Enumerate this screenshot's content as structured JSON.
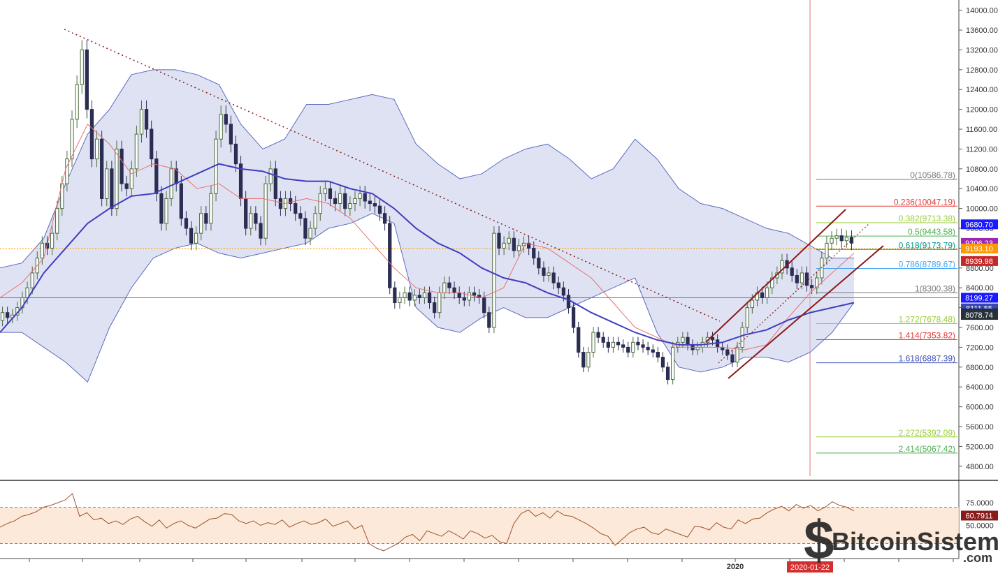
{
  "chart_data": {
    "type": "candlestick",
    "price_axis": {
      "ticks": [
        "14000.00",
        "13600.00",
        "13200.00",
        "12800.00",
        "12400.00",
        "12000.00",
        "11600.00",
        "11200.00",
        "10800.00",
        "10400.00",
        "10000.00",
        "9600.00",
        "9200.00",
        "8800.00",
        "8400.00",
        "8000.00",
        "7600.00",
        "7200.00",
        "6800.00",
        "6400.00",
        "6000.00",
        "5600.00",
        "5200.00",
        "4800.00"
      ],
      "range": [
        4600,
        14150
      ]
    },
    "price_labels": [
      {
        "text": "9680.70",
        "value": 9680.7,
        "color": "#1a1aff"
      },
      {
        "text": "9306.23",
        "value": 9306.23,
        "color": "#9c27b0"
      },
      {
        "text": "9193.10",
        "value": 9193.1,
        "color": "#ff9800"
      },
      {
        "text": "8939.98",
        "value": 8939.98,
        "color": "#c62828"
      },
      {
        "text": "8199.27",
        "value": 8199.27,
        "color": "#1a1aff"
      },
      {
        "text": "8111.55",
        "value": 8111.55,
        "color": "#3949ab"
      },
      {
        "text": "8111.55",
        "value": 8111.55,
        "color": "#1a237e"
      },
      {
        "text": "8078.74",
        "value": 8078.74,
        "color": "#263238"
      }
    ],
    "fibonacci": [
      {
        "label": "0(10586.78)",
        "value": 10586.78,
        "color": "#787878"
      },
      {
        "label": "0.236(10047.19)",
        "value": 10047.19,
        "color": "#e53935"
      },
      {
        "label": "0.382(9713.38)",
        "value": 9713.38,
        "color": "#9acd32"
      },
      {
        "label": "0.5(9443.58)",
        "value": 9443.58,
        "color": "#4caf50"
      },
      {
        "label": "0.618(9173.79)",
        "value": 9173.79,
        "color": "#009688"
      },
      {
        "label": "0.786(8789.67)",
        "value": 8789.67,
        "color": "#42a5f5"
      },
      {
        "label": "1(8300.38)",
        "value": 8300.38,
        "color": "#787878"
      },
      {
        "label": "1.272(7678.48)",
        "value": 7678.48,
        "color": "#9acd32"
      },
      {
        "label": "1.414(7353.82)",
        "value": 7353.82,
        "color": "#e53935"
      },
      {
        "label": "1.618(6887.39)",
        "value": 6887.39,
        "color": "#3f51b5"
      },
      {
        "label": "2.272(5392.09)",
        "value": 5392.09,
        "color": "#9acd32"
      },
      {
        "label": "2.414(5067.42)",
        "value": 5067.42,
        "color": "#4caf50"
      }
    ],
    "horizontal_levels": [
      {
        "value": 8199.27,
        "color": "#607d8b",
        "style": "solid"
      },
      {
        "value": 9193.1,
        "color": "#ff9800",
        "style": "dotted"
      }
    ],
    "closes": [
      7900,
      7800,
      7850,
      8000,
      8200,
      8400,
      8700,
      9000,
      9300,
      9200,
      9500,
      10000,
      10500,
      11000,
      11800,
      12500,
      13200,
      12000,
      11000,
      11400,
      10200,
      10800,
      10000,
      11200,
      10500,
      10400,
      10800,
      11500,
      12000,
      11600,
      11000,
      10300,
      9700,
      10200,
      10800,
      10500,
      9800,
      9600,
      9300,
      9500,
      9900,
      9700,
      10300,
      11400,
      11900,
      11700,
      11300,
      10900,
      10200,
      9600,
      9900,
      9700,
      9400,
      10500,
      10800,
      10200,
      10000,
      10200,
      10100,
      9900,
      9800,
      9400,
      9600,
      9900,
      10300,
      10400,
      10200,
      10100,
      10300,
      10000,
      10100,
      10200,
      10300,
      10150,
      10100,
      10050,
      9900,
      9700,
      8400,
      8100,
      8200,
      8300,
      8150,
      8250,
      8200,
      8300,
      8100,
      7900,
      8300,
      8500,
      8400,
      8300,
      8200,
      8150,
      8300,
      8250,
      8200,
      7900,
      7600,
      9500,
      9200,
      9300,
      9400,
      9150,
      9250,
      9300,
      9200,
      9000,
      8800,
      8650,
      8700,
      8500,
      8400,
      8250,
      8000,
      7600,
      7100,
      6800,
      7100,
      7500,
      7400,
      7300,
      7200,
      7300,
      7250,
      7200,
      7100,
      7300,
      7250,
      7200,
      7150,
      7100,
      7000,
      6800,
      6550,
      7200,
      7300,
      7400,
      7250,
      7150,
      7200,
      7300,
      7400,
      7350,
      7200,
      7150,
      7050,
      6900,
      7200,
      7600,
      8000,
      8150,
      8300,
      8200,
      8400,
      8600,
      8700,
      8950,
      8800,
      8650,
      8500,
      8700,
      8450,
      8400,
      8600,
      9000,
      9300,
      9400,
      9450,
      9350,
      9420,
      9300
    ],
    "bb_upper": [
      8800,
      8900,
      9400,
      10500,
      11500,
      12000,
      12700,
      12800,
      12800,
      12700,
      12500,
      11700,
      11200,
      11400,
      12100,
      12100,
      12200,
      12300,
      12200,
      11300,
      10900,
      10600,
      10700,
      11000,
      11200,
      11300,
      11000,
      10600,
      10800,
      11400,
      11000,
      10400,
      10100,
      10000,
      9800,
      9600,
      9500,
      9250,
      9000,
      9000
    ],
    "bb_lower": [
      7500,
      7500,
      7200,
      6900,
      6500,
      7600,
      8400,
      9000,
      9200,
      9300,
      9100,
      9000,
      9100,
      9200,
      9300,
      9600,
      9700,
      9900,
      9700,
      8000,
      7600,
      7500,
      7800,
      8000,
      7800,
      7800,
      8000,
      8200,
      8400,
      8600,
      7500,
      6800,
      6700,
      6800,
      7000,
      7000,
      6900,
      7100,
      7500,
      8100
    ],
    "ma_slow": [
      7500,
      8000,
      8700,
      9200,
      9700,
      10000,
      10250,
      10300,
      10500,
      10700,
      10900,
      10800,
      10750,
      10600,
      10550,
      10550,
      10400,
      10300,
      10000,
      9600,
      9300,
      9100,
      8800,
      8600,
      8500,
      8300,
      8150,
      7900,
      7700,
      7500,
      7350,
      7250,
      7250,
      7300,
      7450,
      7550,
      7750,
      7900,
      8000,
      8100
    ],
    "ma_fast": [
      8200,
      8500,
      9000,
      10800,
      11700,
      11300,
      10700,
      10900,
      10800,
      10400,
      10500,
      10200,
      10200,
      10100,
      10200,
      10100,
      9800,
      9300,
      8800,
      8400,
      8300,
      8300,
      8200,
      8400,
      9300,
      9200,
      8900,
      8600,
      8100,
      7600,
      7400,
      7200,
      7200,
      7200,
      7150,
      7250,
      7800,
      8300,
      8700,
      9100
    ],
    "rsi": {
      "label": "60.7911",
      "value": 60.7911,
      "ticks": [
        "75.0000",
        "50.0000"
      ],
      "upper_band": 70,
      "lower_band": 30,
      "series": [
        48,
        52,
        55,
        60,
        62,
        65,
        70,
        72,
        75,
        78,
        85,
        60,
        64,
        56,
        58,
        52,
        55,
        51,
        57,
        60,
        54,
        49,
        56,
        47,
        52,
        55,
        50,
        47,
        52,
        57,
        58,
        63,
        62,
        55,
        52,
        55,
        50,
        53,
        51,
        56,
        48,
        52,
        55,
        51,
        53,
        57,
        49,
        52,
        55,
        46,
        50,
        30,
        25,
        22,
        26,
        30,
        37,
        40,
        33,
        44,
        41,
        38,
        44,
        40,
        35,
        44,
        41,
        36,
        39,
        32,
        30,
        52,
        63,
        67,
        60,
        64,
        58,
        66,
        61,
        60,
        56,
        52,
        47,
        41,
        38,
        28,
        35,
        42,
        46,
        48,
        42,
        40,
        46,
        43,
        40,
        37,
        49,
        48,
        45,
        53,
        48,
        46,
        56,
        52,
        57,
        58,
        64,
        68,
        71,
        66,
        73,
        69,
        72,
        66,
        70,
        76,
        72,
        70,
        66
      ]
    },
    "time_axis": {
      "year_label": "2020",
      "cursor_label": "2020-01-22"
    },
    "watermark": {
      "brand": "BitcoinSistemi",
      "suffix": ".com"
    }
  }
}
